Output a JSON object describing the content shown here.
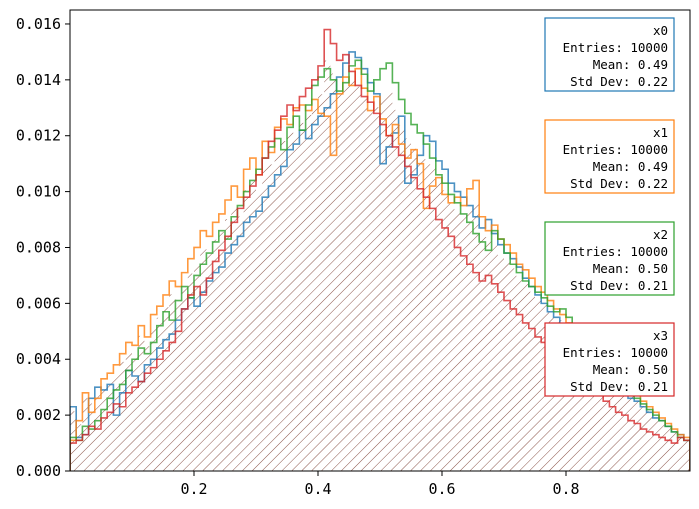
{
  "chart_data": {
    "type": "histogram",
    "title": "",
    "xlabel": "",
    "ylabel": "",
    "xlim": [
      0.0,
      1.0
    ],
    "ylim": [
      0.0,
      0.0165
    ],
    "x_ticks": [
      0.2,
      0.4,
      0.6,
      0.8
    ],
    "x_tick_labels": [
      "0.2",
      "0.4",
      "0.6",
      "0.8"
    ],
    "y_ticks": [
      0.0,
      0.002,
      0.004,
      0.006,
      0.008,
      0.01,
      0.012,
      0.014,
      0.016
    ],
    "y_tick_labels": [
      "0.000",
      "0.002",
      "0.004",
      "0.006",
      "0.008",
      "0.010",
      "0.012",
      "0.014",
      "0.016"
    ],
    "grid": false,
    "hatch_fill": {
      "color": "#8c564b",
      "pattern": "diagonal"
    },
    "series": [
      {
        "name": "x0",
        "color": "#1f77b4",
        "bins_start": 0.0,
        "bin_width": 0.01,
        "values": [
          0.0023,
          0.0012,
          0.0013,
          0.0026,
          0.003,
          0.0029,
          0.0031,
          0.002,
          0.0028,
          0.0036,
          0.0034,
          0.0032,
          0.0038,
          0.004,
          0.0044,
          0.0047,
          0.0049,
          0.0054,
          0.0058,
          0.0062,
          0.0059,
          0.0064,
          0.0068,
          0.0071,
          0.0073,
          0.0078,
          0.0081,
          0.0084,
          0.0089,
          0.0091,
          0.0093,
          0.0098,
          0.0102,
          0.0106,
          0.0109,
          0.0115,
          0.0117,
          0.0122,
          0.0119,
          0.0124,
          0.0127,
          0.013,
          0.0135,
          0.0141,
          0.0146,
          0.015,
          0.0148,
          0.0144,
          0.0139,
          0.0135,
          0.011,
          0.0116,
          0.0121,
          0.0127,
          0.0103,
          0.0106,
          0.0113,
          0.012,
          0.0118,
          0.0111,
          0.0108,
          0.0103,
          0.01,
          0.0098,
          0.0095,
          0.0091,
          0.0087,
          0.009,
          0.0085,
          0.0081,
          0.0078,
          0.0076,
          0.0073,
          0.0069,
          0.0066,
          0.0063,
          0.006,
          0.0057,
          0.0055,
          0.0052,
          0.005,
          0.0047,
          0.0045,
          0.0043,
          0.0041,
          0.0038,
          0.0036,
          0.0034,
          0.0031,
          0.0029,
          0.0026,
          0.0025,
          0.0023,
          0.0021,
          0.0019,
          0.0018,
          0.0016,
          0.0014,
          0.0013,
          0.0011
        ],
        "stats": {
          "title": "x0",
          "entries_label": "Entries:",
          "entries": "10000",
          "mean_label": "Mean:",
          "mean": "0.49",
          "std_label": "Std Dev:",
          "std": "0.22"
        }
      },
      {
        "name": "x1",
        "color": "#ff7f0e",
        "bins_start": 0.0,
        "bin_width": 0.01,
        "values": [
          0.0011,
          0.0018,
          0.0028,
          0.0021,
          0.0026,
          0.0033,
          0.0035,
          0.0038,
          0.0042,
          0.0046,
          0.0045,
          0.0052,
          0.0048,
          0.0056,
          0.0059,
          0.0063,
          0.0068,
          0.0066,
          0.0071,
          0.0076,
          0.008,
          0.0086,
          0.0084,
          0.0089,
          0.0092,
          0.0097,
          0.0102,
          0.0098,
          0.0108,
          0.0112,
          0.0106,
          0.0118,
          0.0114,
          0.0123,
          0.0126,
          0.0124,
          0.013,
          0.0131,
          0.0129,
          0.0133,
          0.0128,
          0.0127,
          0.0113,
          0.0135,
          0.0141,
          0.0138,
          0.0144,
          0.0137,
          0.0129,
          0.0134,
          0.0126,
          0.012,
          0.0124,
          0.0117,
          0.0112,
          0.0115,
          0.011,
          0.0094,
          0.0102,
          0.0105,
          0.0099,
          0.0096,
          0.0098,
          0.0095,
          0.0101,
          0.0104,
          0.0091,
          0.0086,
          0.0088,
          0.0083,
          0.0081,
          0.0078,
          0.0074,
          0.0072,
          0.0069,
          0.0066,
          0.0064,
          0.0061,
          0.0058,
          0.0056,
          0.0053,
          0.005,
          0.0048,
          0.0045,
          0.0043,
          0.004,
          0.0038,
          0.0036,
          0.0034,
          0.0031,
          0.0029,
          0.0027,
          0.0025,
          0.0023,
          0.0021,
          0.0019,
          0.0017,
          0.0015,
          0.0013,
          0.0012
        ],
        "stats": {
          "title": "x1",
          "entries_label": "Entries:",
          "entries": "10000",
          "mean_label": "Mean:",
          "mean": "0.49",
          "std_label": "Std Dev:",
          "std": "0.22"
        }
      },
      {
        "name": "x2",
        "color": "#2ca02c",
        "bins_start": 0.0,
        "bin_width": 0.01,
        "values": [
          0.0012,
          0.0011,
          0.0016,
          0.0015,
          0.0018,
          0.0022,
          0.0026,
          0.0029,
          0.0031,
          0.0036,
          0.004,
          0.0044,
          0.0042,
          0.0046,
          0.0052,
          0.0057,
          0.0054,
          0.0061,
          0.0066,
          0.0062,
          0.007,
          0.0074,
          0.0078,
          0.0082,
          0.0086,
          0.0083,
          0.0091,
          0.0095,
          0.01,
          0.0104,
          0.0108,
          0.0112,
          0.0116,
          0.0119,
          0.0115,
          0.0123,
          0.0127,
          0.0122,
          0.0131,
          0.0138,
          0.0141,
          0.0144,
          0.014,
          0.0136,
          0.0139,
          0.0145,
          0.0147,
          0.0142,
          0.0136,
          0.014,
          0.0144,
          0.0146,
          0.0139,
          0.0133,
          0.0128,
          0.0124,
          0.0121,
          0.0117,
          0.0112,
          0.0106,
          0.0103,
          0.0099,
          0.0096,
          0.0092,
          0.0089,
          0.0085,
          0.0082,
          0.0079,
          0.0086,
          0.0083,
          0.0078,
          0.0074,
          0.0071,
          0.0068,
          0.0066,
          0.0064,
          0.0062,
          0.0059,
          0.0057,
          0.0058,
          0.0055,
          0.0052,
          0.0049,
          0.0046,
          0.0044,
          0.0041,
          0.0038,
          0.0036,
          0.0033,
          0.003,
          0.0028,
          0.0026,
          0.0024,
          0.0022,
          0.002,
          0.0018,
          0.0016,
          0.0014,
          0.0012,
          0.0011
        ],
        "stats": {
          "title": "x2",
          "entries_label": "Entries:",
          "entries": "10000",
          "mean_label": "Mean:",
          "mean": "0.50",
          "std_label": "Std Dev:",
          "std": "0.21"
        }
      },
      {
        "name": "x3",
        "color": "#d62728",
        "bins_start": 0.0,
        "bin_width": 0.01,
        "values": [
          0.001,
          0.0011,
          0.0013,
          0.0016,
          0.0015,
          0.0019,
          0.0021,
          0.0024,
          0.0023,
          0.0028,
          0.003,
          0.0032,
          0.0035,
          0.0037,
          0.004,
          0.0043,
          0.0046,
          0.005,
          0.0058,
          0.0063,
          0.0066,
          0.0063,
          0.0069,
          0.0075,
          0.0079,
          0.0084,
          0.0089,
          0.0094,
          0.0098,
          0.0102,
          0.0106,
          0.0112,
          0.0118,
          0.0122,
          0.0127,
          0.0131,
          0.0129,
          0.0134,
          0.0137,
          0.014,
          0.0145,
          0.0158,
          0.0153,
          0.0147,
          0.0149,
          0.0143,
          0.0138,
          0.0134,
          0.0132,
          0.0128,
          0.0124,
          0.012,
          0.0116,
          0.0113,
          0.0109,
          0.0105,
          0.0101,
          0.0098,
          0.0094,
          0.009,
          0.0087,
          0.0084,
          0.008,
          0.0077,
          0.0074,
          0.0071,
          0.0068,
          0.007,
          0.0067,
          0.0064,
          0.0061,
          0.0058,
          0.0056,
          0.0053,
          0.0051,
          0.0048,
          0.0046,
          0.0044,
          0.0042,
          0.0039,
          0.0037,
          0.0035,
          0.0033,
          0.0031,
          0.0029,
          0.0027,
          0.0025,
          0.0023,
          0.0021,
          0.002,
          0.0018,
          0.0017,
          0.0015,
          0.0014,
          0.0013,
          0.0012,
          0.0011,
          0.001,
          0.0012,
          0.0011
        ],
        "stats": {
          "title": "x3",
          "entries_label": "Entries:",
          "entries": "10000",
          "mean_label": "Mean:",
          "mean": "0.50",
          "std_label": "Std Dev:",
          "std": "0.21"
        }
      }
    ]
  }
}
